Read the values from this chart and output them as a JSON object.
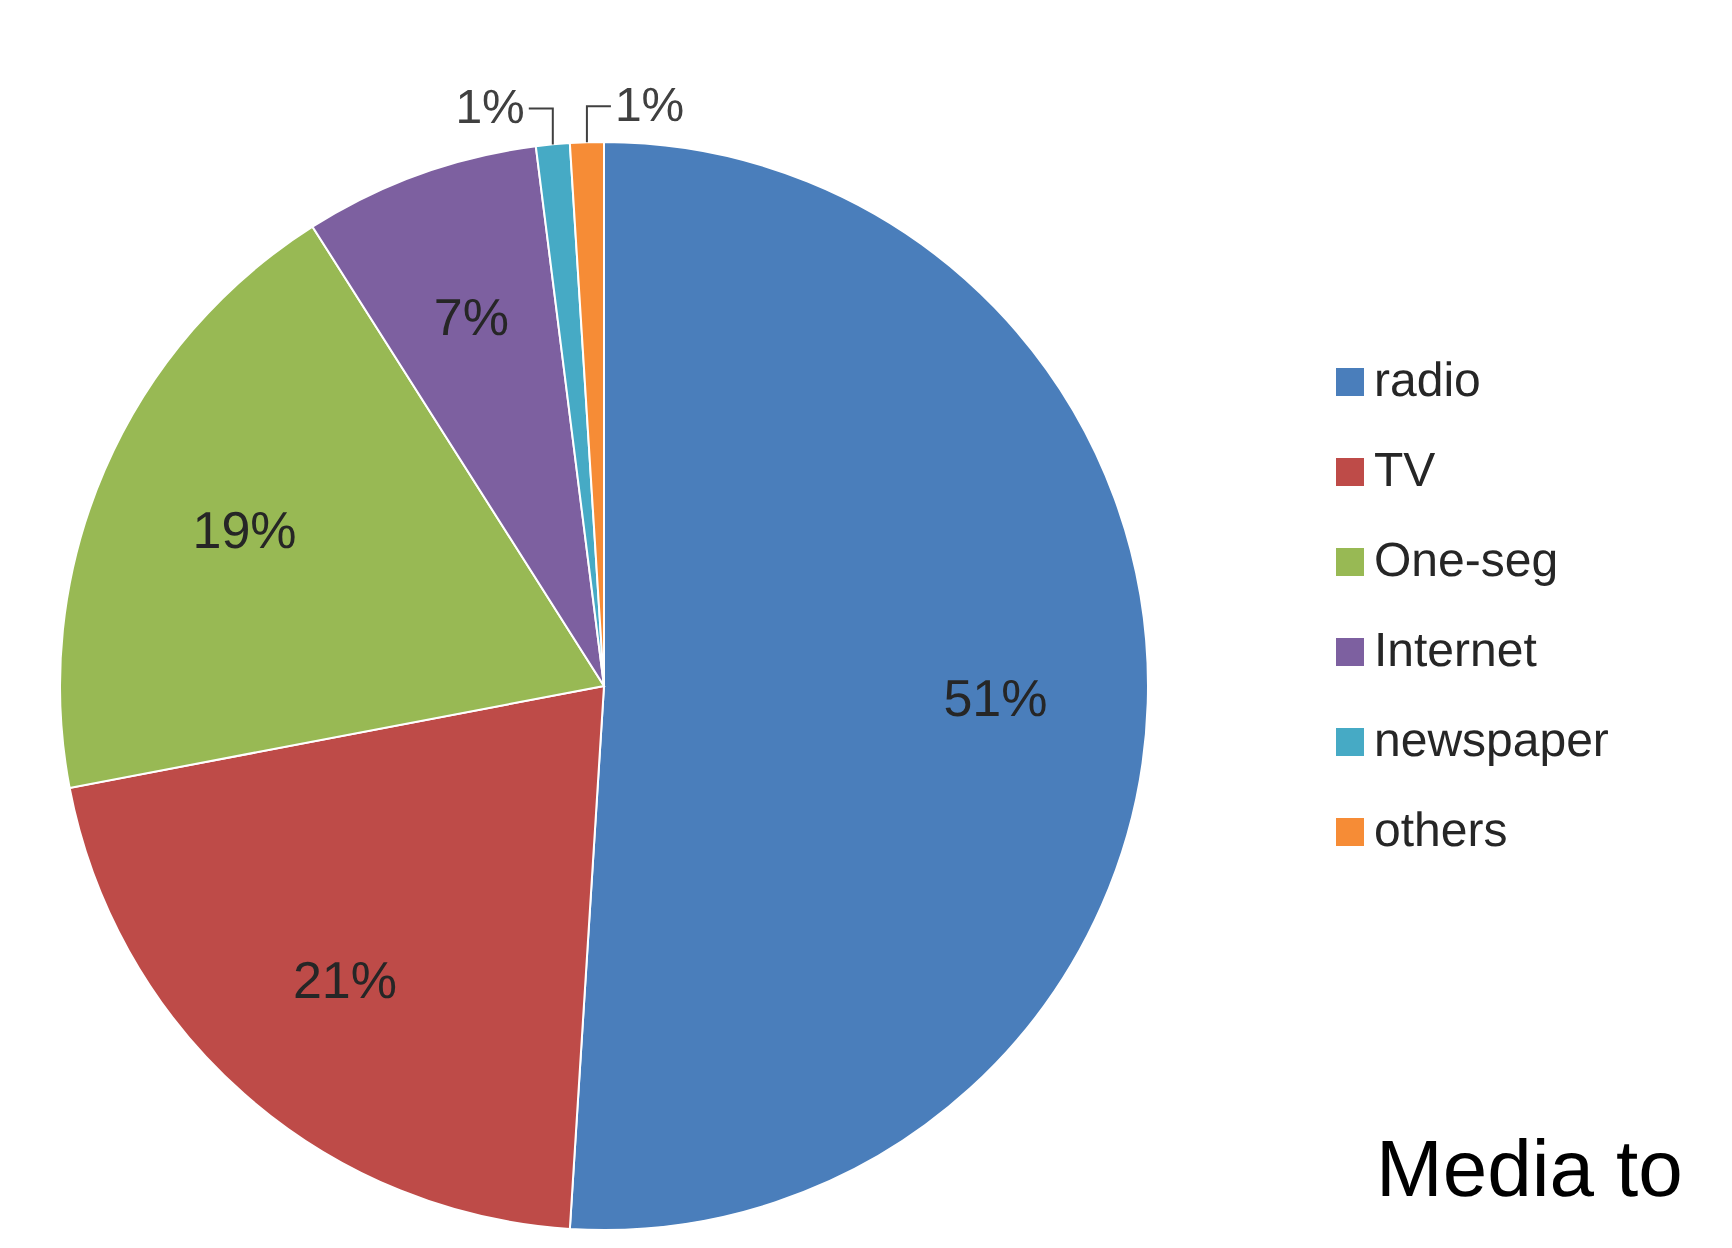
{
  "chart_data": {
    "type": "pie",
    "categories": [
      "radio",
      "TV",
      "One-seg",
      "Internet",
      "newspaper",
      "others"
    ],
    "values": [
      51,
      21,
      19,
      7,
      1,
      1
    ],
    "colors": [
      "#4a7ebb",
      "#be4b48",
      "#98b954",
      "#7d60a0",
      "#46aac5",
      "#f68c36"
    ],
    "value_labels": [
      "51%",
      "21%",
      "19%",
      "7%",
      "1%",
      "1%"
    ],
    "legend": "right",
    "annotations": [
      "Media to"
    ]
  }
}
